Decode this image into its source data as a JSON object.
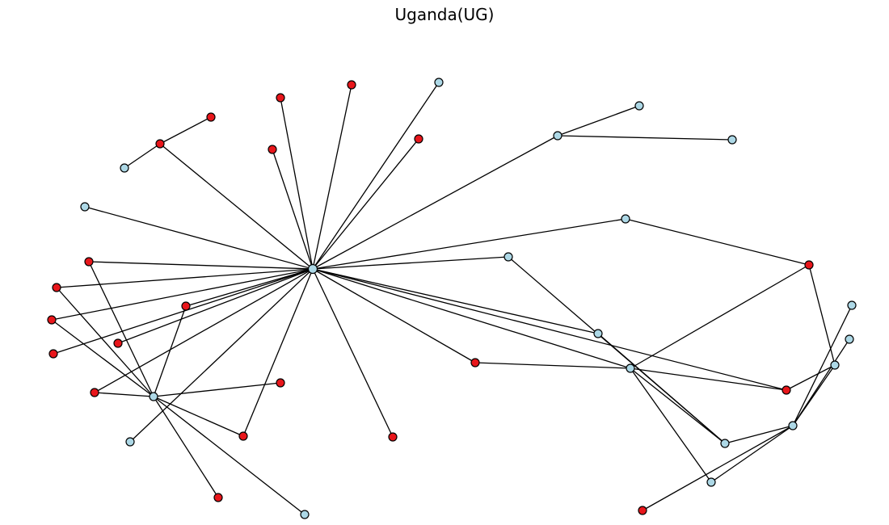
{
  "title": "Uganda(UG)",
  "colors": {
    "red": "#e8161b",
    "lightblue": "#add8e6",
    "edge": "#000000",
    "background": "#ffffff"
  }
}
